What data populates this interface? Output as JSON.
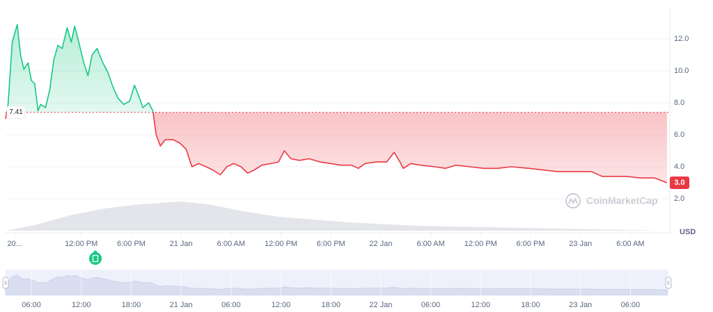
{
  "chart_data": {
    "type": "line",
    "unit": "USD",
    "watermark": "CoinMarketCap",
    "baseline": 7.41,
    "current_price": {
      "value": 3.0,
      "label": "3.0"
    },
    "up_color": "#16c784",
    "down_color": "#ea3943",
    "xlim": [
      2.9,
      82.4
    ],
    "ylim": [
      0,
      14
    ],
    "grid": true,
    "yticks": [
      {
        "value": 2,
        "label": "2.0"
      },
      {
        "value": 4,
        "label": "4.0"
      },
      {
        "value": 6,
        "label": "6.0"
      },
      {
        "value": 8,
        "label": "8.0"
      },
      {
        "value": 10,
        "label": "10.0"
      },
      {
        "value": 12,
        "label": "12.0"
      }
    ],
    "xticks": [
      {
        "value": 4,
        "label": "20..."
      },
      {
        "value": 12,
        "label": "12:00 PM"
      },
      {
        "value": 18,
        "label": "6:00 PM"
      },
      {
        "value": 24,
        "label": "21 Jan"
      },
      {
        "value": 30,
        "label": "6:00 AM"
      },
      {
        "value": 36,
        "label": "12:00 PM"
      },
      {
        "value": 42,
        "label": "6:00 PM"
      },
      {
        "value": 48,
        "label": "22 Jan"
      },
      {
        "value": 54,
        "label": "6:00 AM"
      },
      {
        "value": 60,
        "label": "12:00 PM"
      },
      {
        "value": 66,
        "label": "6:00 PM"
      },
      {
        "value": 72,
        "label": "23 Jan"
      },
      {
        "value": 78,
        "label": "6:00 AM"
      }
    ],
    "x": [
      2.9,
      3.2,
      3.7,
      4.3,
      4.7,
      5.1,
      5.6,
      6.0,
      6.4,
      6.8,
      7.1,
      7.7,
      8.2,
      8.7,
      9.2,
      9.7,
      10.3,
      10.8,
      11.2,
      11.7,
      12.3,
      12.8,
      13.3,
      13.9,
      14.6,
      15.2,
      15.8,
      16.4,
      17.1,
      17.8,
      18.4,
      19.0,
      19.4,
      20.1,
      20.6,
      21.0,
      21.5,
      22.1,
      23.0,
      23.8,
      24.6,
      25.3,
      26.1,
      27.0,
      27.8,
      28.7,
      29.5,
      30.3,
      31.2,
      32.0,
      32.8,
      33.7,
      34.8,
      35.7,
      36.4,
      37.2,
      38.2,
      39.4,
      40.7,
      42.0,
      43.2,
      44.5,
      45.3,
      46.1,
      47.4,
      48.7,
      49.6,
      50.3,
      50.7,
      51.6,
      52.8,
      54.5,
      55.8,
      57.0,
      58.7,
      60.4,
      62.0,
      63.7,
      65.8,
      67.5,
      69.2,
      70.8,
      72.1,
      73.3,
      74.6,
      75.8,
      77.5,
      79.2,
      80.9,
      82.4
    ],
    "values": [
      7.0,
      7.9,
      11.8,
      12.9,
      11.0,
      10.1,
      10.5,
      9.4,
      9.2,
      7.5,
      7.9,
      7.7,
      8.8,
      10.7,
      11.6,
      11.4,
      12.7,
      11.8,
      12.8,
      11.8,
      10.5,
      9.7,
      11.0,
      11.4,
      10.5,
      9.9,
      9.0,
      8.3,
      7.9,
      8.1,
      9.1,
      8.3,
      7.7,
      8.0,
      7.5,
      6.0,
      5.3,
      5.7,
      5.7,
      5.5,
      5.1,
      4.0,
      4.2,
      4.0,
      3.8,
      3.5,
      4.0,
      4.2,
      4.0,
      3.6,
      3.8,
      4.1,
      4.2,
      4.3,
      5.0,
      4.5,
      4.4,
      4.5,
      4.3,
      4.2,
      4.1,
      4.1,
      3.9,
      4.2,
      4.3,
      4.3,
      4.9,
      4.3,
      3.9,
      4.2,
      4.1,
      4.0,
      3.9,
      4.1,
      4.0,
      3.9,
      3.9,
      4.0,
      3.9,
      3.8,
      3.7,
      3.7,
      3.7,
      3.7,
      3.4,
      3.4,
      3.4,
      3.3,
      3.3,
      3.0
    ],
    "volume": {
      "color": "#e3e5ea",
      "ylim": [
        0,
        100
      ],
      "x": [
        2.9,
        6.4,
        10.6,
        14.8,
        19.0,
        24.0,
        27.3,
        31.5,
        35.7,
        44.1,
        52.4,
        60.8,
        69.2,
        77.5,
        82.4
      ],
      "values": [
        0,
        8,
        22,
        32,
        38,
        42,
        38,
        28,
        20,
        12,
        7,
        5,
        3,
        1,
        0
      ]
    },
    "navigator": {
      "xticks": [
        {
          "value": 6,
          "label": "06:00"
        },
        {
          "value": 12,
          "label": "12:00"
        },
        {
          "value": 18,
          "label": "18:00"
        },
        {
          "value": 24,
          "label": "21 Jan"
        },
        {
          "value": 30,
          "label": "06:00"
        },
        {
          "value": 36,
          "label": "12:00"
        },
        {
          "value": 42,
          "label": "18:00"
        },
        {
          "value": 48,
          "label": "22 Jan"
        },
        {
          "value": 54,
          "label": "06:00"
        },
        {
          "value": 60,
          "label": "12:00"
        },
        {
          "value": 66,
          "label": "18:00"
        },
        {
          "value": 72,
          "label": "23 Jan"
        },
        {
          "value": 78,
          "label": "06:00"
        }
      ]
    }
  }
}
